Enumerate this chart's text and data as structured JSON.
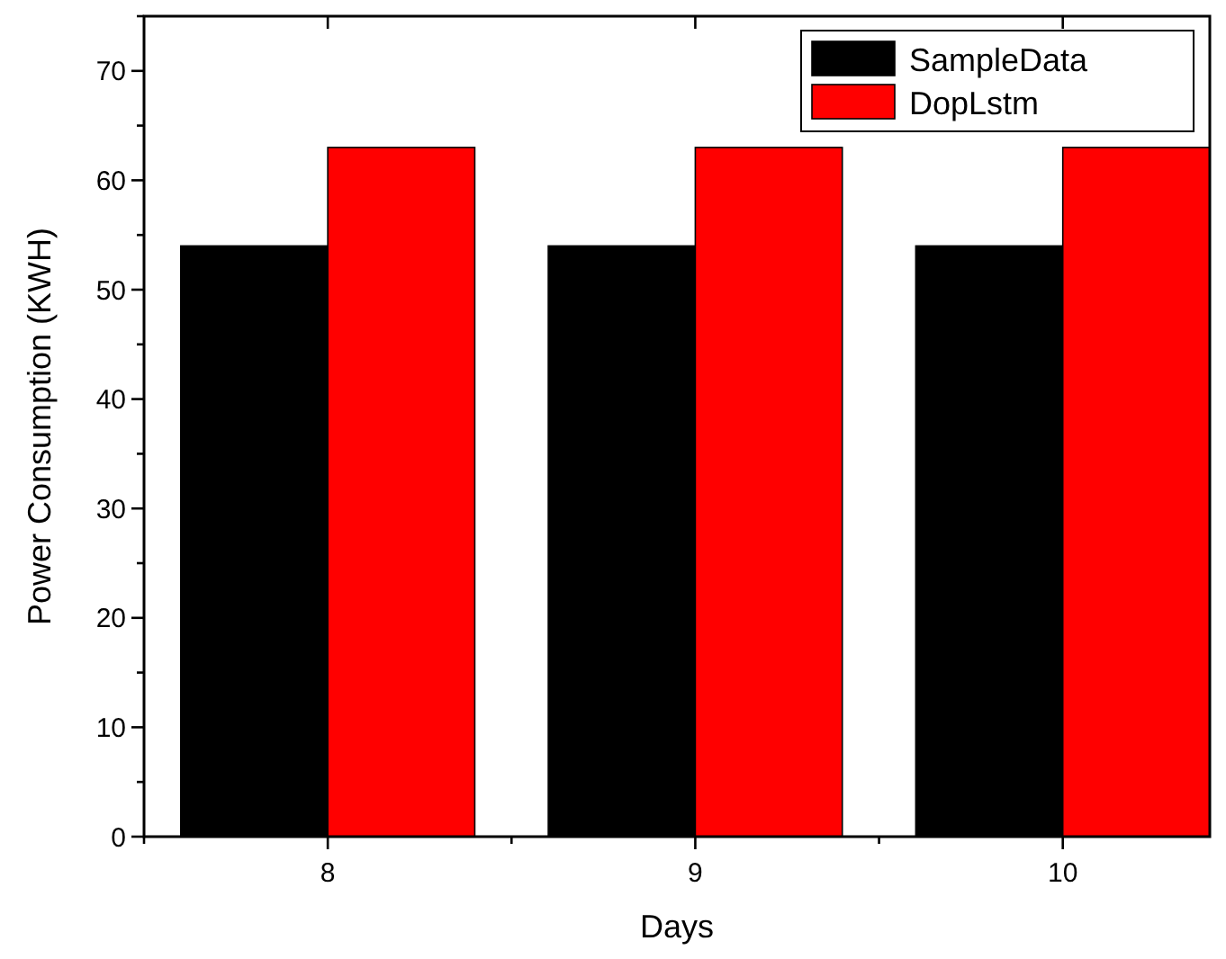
{
  "chart_data": {
    "type": "bar",
    "xlabel": "Days",
    "ylabel": "Power Consumption (KWH)",
    "categories": [
      "8",
      "9",
      "10"
    ],
    "series": [
      {
        "name": "SampleData",
        "color": "#000000",
        "values": [
          54,
          54,
          54
        ]
      },
      {
        "name": "DopLstm",
        "color": "#ff0000",
        "values": [
          63,
          63,
          63
        ]
      }
    ],
    "ylim": [
      0,
      75
    ],
    "yticks": [
      0,
      {
        "value": 5,
        "label": null
      },
      10,
      {
        "value": 15,
        "label": null
      },
      20,
      {
        "value": 25,
        "label": null
      },
      30,
      {
        "value": 35,
        "label": null
      },
      40,
      {
        "value": 45,
        "label": null
      },
      50,
      {
        "value": 55,
        "label": null
      },
      60,
      {
        "value": 65,
        "label": null
      },
      70,
      {
        "value": 75,
        "label": null
      }
    ],
    "grid": false,
    "legend": "top right"
  }
}
